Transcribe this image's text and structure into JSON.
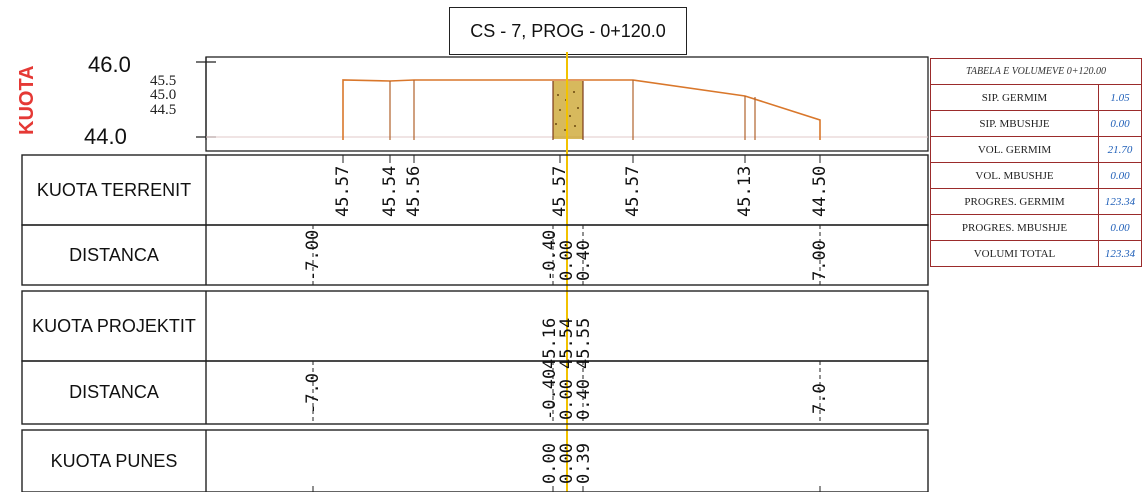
{
  "header": {
    "title": "CS - 7, PROG - 0+120.0"
  },
  "axis": {
    "label": "KUOTA",
    "top_value": "46.0",
    "bottom_value": "44.0",
    "minor_ticks": [
      "45.5",
      "45.0",
      "44.5"
    ]
  },
  "rows": [
    {
      "title": "KUOTA TERRENIT",
      "values": [
        "45.57",
        "45.54",
        "45.56",
        "45.57",
        "45.57",
        "45.13",
        "44.50"
      ]
    },
    {
      "title": "DISTANCA",
      "values": [
        "-7.00",
        "-0.40",
        "0.00",
        "0.40",
        "7.00"
      ]
    },
    {
      "title": "KUOTA PROJEKTIT",
      "values": [
        "45.16",
        "45.54",
        "45.55"
      ]
    },
    {
      "title": "DISTANCA",
      "values": [
        "-7.0",
        "-0.40",
        "0.00",
        "0.40",
        "7.0"
      ]
    },
    {
      "title": "KUOTA PUNES",
      "values": [
        "0.00",
        "0.00",
        "0.39"
      ]
    }
  ],
  "volume_table": {
    "header": "TABELA E VOLUMEVE 0+120.00",
    "rows": [
      {
        "name": "SIP. GERMIM",
        "value": "1.05"
      },
      {
        "name": "SIP. MBUSHJE",
        "value": "0.00"
      },
      {
        "name": "VOL. GERMIM",
        "value": "21.70"
      },
      {
        "name": "VOL. MBUSHJE",
        "value": "0.00"
      },
      {
        "name": "PROGRES. GERMIM",
        "value": "123.34"
      },
      {
        "name": "PROGRES. MBUSHJE",
        "value": "0.00"
      },
      {
        "name": "VOLUMI TOTAL",
        "value": "123.34"
      }
    ]
  },
  "colors": {
    "terrain": "#d9772b",
    "accent": "#f2c200",
    "axis_label": "#e53935",
    "fill": "#c9a227",
    "table_border": "#9b2b2b",
    "table_value": "#1f5fb8"
  }
}
